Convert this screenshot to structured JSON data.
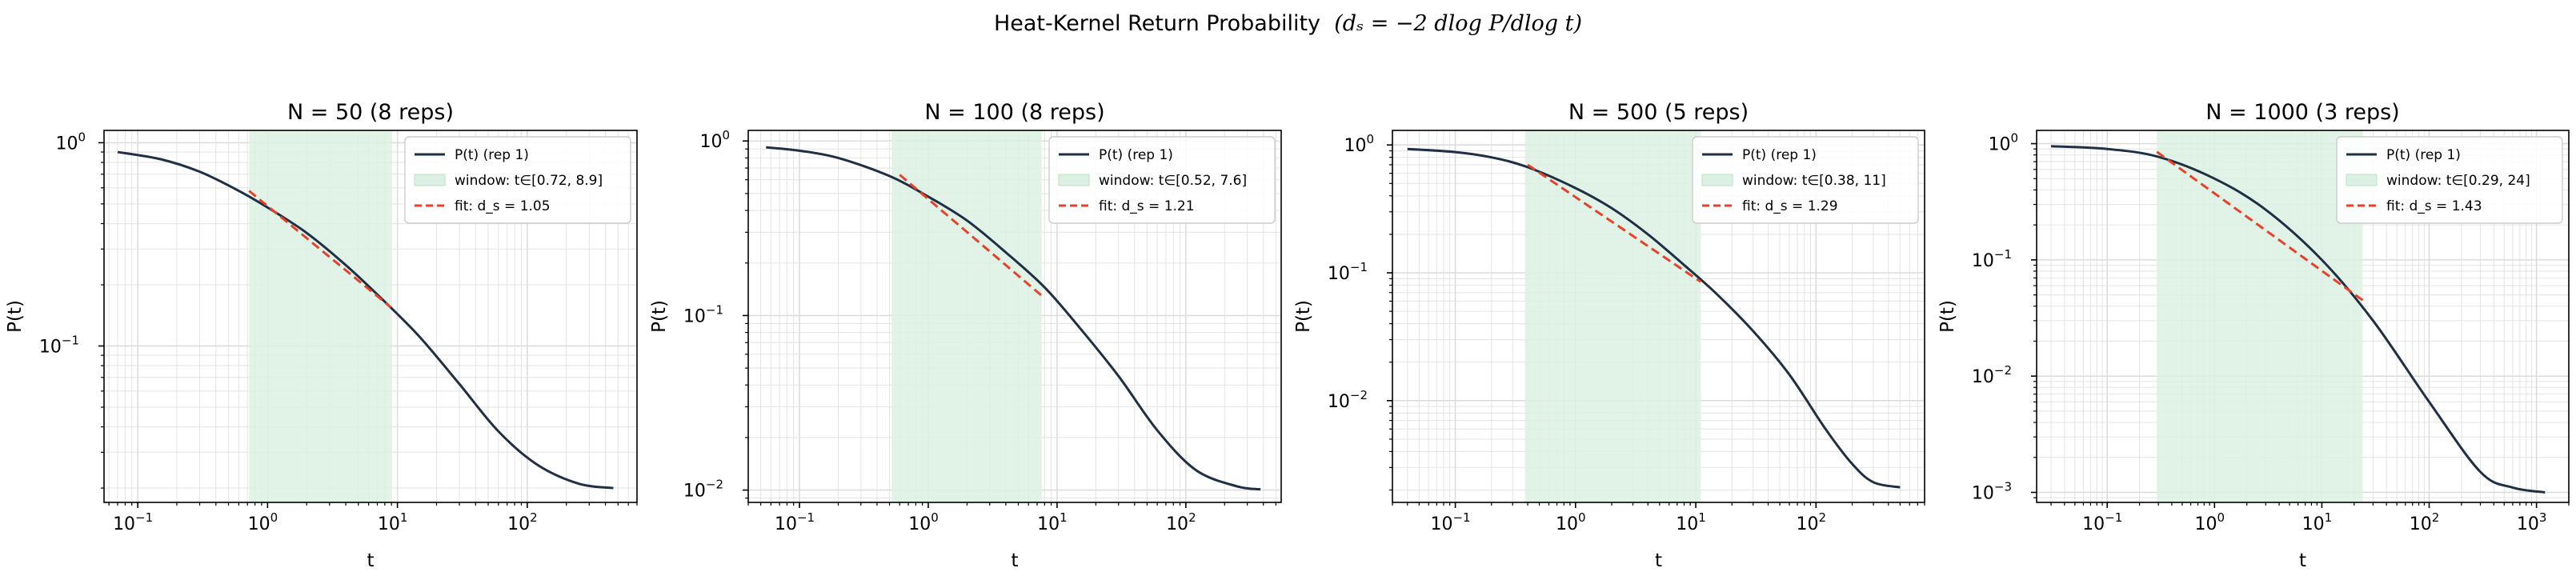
{
  "figure": {
    "title_prefix": "Heat-Kernel Return Probability",
    "title_math": "(dₛ = −2 dlog P/dlog t)"
  },
  "colors": {
    "curve": "#1f3044",
    "fit": "#e8402a",
    "window_fill": "#dcf1e3",
    "window_edge": "#b9e2c6",
    "grid": "#dcdcdc"
  },
  "chart_data": [
    {
      "type": "line",
      "title": "N = 50  (8 reps)",
      "xlabel": "t",
      "ylabel": "P(t)",
      "xscale": "log",
      "yscale": "log",
      "xlim": [
        0.055,
        700
      ],
      "ylim": [
        0.017,
        1.15
      ],
      "xticks": [
        {
          "value": 0.1,
          "exp": "−1"
        },
        {
          "value": 1,
          "exp": "0"
        },
        {
          "value": 10,
          "exp": "1"
        },
        {
          "value": 100,
          "exp": "2"
        }
      ],
      "yticks": [
        {
          "value": 0.1,
          "exp": "−1"
        },
        {
          "value": 1,
          "exp": "0"
        }
      ],
      "grid": true,
      "legend_position": "upper right",
      "series": [
        {
          "name": "P(t) (rep 1)",
          "x": [
            0.07,
            0.15,
            0.3,
            0.6,
            1.0,
            2.0,
            4.0,
            8.0,
            15,
            30,
            60,
            120,
            250,
            460
          ],
          "y": [
            0.9,
            0.83,
            0.72,
            0.58,
            0.48,
            0.36,
            0.25,
            0.165,
            0.11,
            0.065,
            0.038,
            0.026,
            0.021,
            0.02
          ]
        }
      ],
      "window": {
        "label": "window: t∈[0.72, 8.9]",
        "t_min": 0.72,
        "t_max": 8.9
      },
      "fit": {
        "label": "fit: d_s = 1.05",
        "x": [
          0.72,
          8.9
        ],
        "y": [
          0.58,
          0.155
        ]
      }
    },
    {
      "type": "line",
      "title": "N = 100  (8 reps)",
      "xlabel": "t",
      "ylabel": "P(t)",
      "xscale": "log",
      "yscale": "log",
      "xlim": [
        0.04,
        550
      ],
      "ylim": [
        0.0085,
        1.15
      ],
      "xticks": [
        {
          "value": 0.1,
          "exp": "−1"
        },
        {
          "value": 1,
          "exp": "0"
        },
        {
          "value": 10,
          "exp": "1"
        },
        {
          "value": 100,
          "exp": "2"
        }
      ],
      "yticks": [
        {
          "value": 0.01,
          "exp": "−2"
        },
        {
          "value": 0.1,
          "exp": "−1"
        },
        {
          "value": 1,
          "exp": "0"
        }
      ],
      "grid": true,
      "legend_position": "upper right",
      "series": [
        {
          "name": "P(t) (rep 1)",
          "x": [
            0.055,
            0.1,
            0.2,
            0.5,
            1.0,
            2.0,
            4.0,
            8.0,
            15,
            30,
            60,
            120,
            250,
            380
          ],
          "y": [
            0.92,
            0.88,
            0.8,
            0.63,
            0.48,
            0.35,
            0.23,
            0.145,
            0.085,
            0.045,
            0.022,
            0.013,
            0.0105,
            0.0101
          ]
        }
      ],
      "window": {
        "label": "window: t∈[0.52, 7.6]",
        "t_min": 0.52,
        "t_max": 7.6
      },
      "fit": {
        "label": "fit: d_s = 1.21",
        "x": [
          0.6,
          7.6
        ],
        "y": [
          0.64,
          0.13
        ]
      }
    },
    {
      "type": "line",
      "title": "N = 500  (5 reps)",
      "xlabel": "t",
      "ylabel": "P(t)",
      "xscale": "log",
      "yscale": "log",
      "xlim": [
        0.03,
        800
      ],
      "ylim": [
        0.0016,
        1.3
      ],
      "xticks": [
        {
          "value": 0.1,
          "exp": "−1"
        },
        {
          "value": 1,
          "exp": "0"
        },
        {
          "value": 10,
          "exp": "1"
        },
        {
          "value": 100,
          "exp": "2"
        }
      ],
      "yticks": [
        {
          "value": 0.01,
          "exp": "−2"
        },
        {
          "value": 0.1,
          "exp": "−1"
        },
        {
          "value": 1,
          "exp": "0"
        }
      ],
      "grid": true,
      "legend_position": "upper right",
      "series": [
        {
          "name": "P(t) (rep 1)",
          "x": [
            0.04,
            0.1,
            0.2,
            0.4,
            1.0,
            2.0,
            4.0,
            8.0,
            15,
            30,
            60,
            120,
            200,
            300,
            500
          ],
          "y": [
            0.93,
            0.88,
            0.8,
            0.67,
            0.46,
            0.32,
            0.2,
            0.115,
            0.068,
            0.035,
            0.016,
            0.006,
            0.0032,
            0.0023,
            0.0021
          ]
        }
      ],
      "window": {
        "label": "window: t∈[0.38, 11]",
        "t_min": 0.38,
        "t_max": 11
      },
      "fit": {
        "label": "fit: d_s = 1.29",
        "x": [
          0.4,
          11
        ],
        "y": [
          0.7,
          0.085
        ]
      }
    },
    {
      "type": "line",
      "title": "N = 1000  (3 reps)",
      "xlabel": "t",
      "ylabel": "P(t)",
      "xscale": "log",
      "yscale": "log",
      "xlim": [
        0.022,
        2000
      ],
      "ylim": [
        0.00082,
        1.3
      ],
      "xticks": [
        {
          "value": 0.1,
          "exp": "−1"
        },
        {
          "value": 1,
          "exp": "0"
        },
        {
          "value": 10,
          "exp": "1"
        },
        {
          "value": 100,
          "exp": "2"
        },
        {
          "value": 1000,
          "exp": "3"
        }
      ],
      "yticks": [
        {
          "value": 0.001,
          "exp": "−3"
        },
        {
          "value": 0.01,
          "exp": "−2"
        },
        {
          "value": 0.1,
          "exp": "−1"
        },
        {
          "value": 1,
          "exp": "0"
        }
      ],
      "grid": true,
      "legend_position": "upper right",
      "series": [
        {
          "name": "P(t) (rep 1)",
          "x": [
            0.03,
            0.1,
            0.3,
            1.0,
            3.0,
            10,
            30,
            100,
            300,
            600,
            1200
          ],
          "y": [
            0.95,
            0.9,
            0.77,
            0.5,
            0.27,
            0.1,
            0.03,
            0.006,
            0.0015,
            0.0011,
            0.001
          ]
        }
      ],
      "window": {
        "label": "window: t∈[0.29, 24]",
        "t_min": 0.29,
        "t_max": 24
      },
      "fit": {
        "label": "fit: d_s = 1.43",
        "x": [
          0.29,
          24
        ],
        "y": [
          0.85,
          0.045
        ]
      }
    }
  ]
}
